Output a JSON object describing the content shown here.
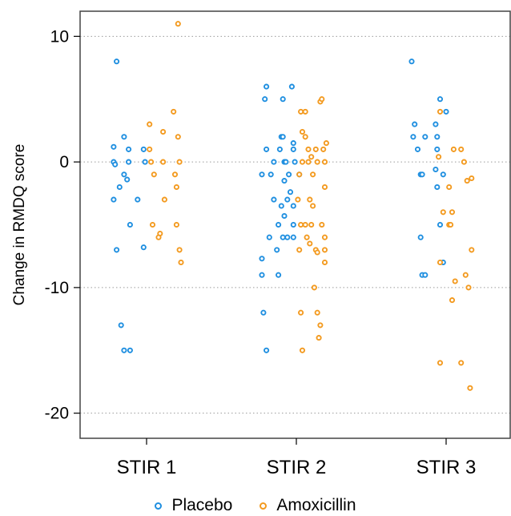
{
  "chart_data": {
    "type": "scatter",
    "title": "",
    "ylabel": "Change in RMDQ score",
    "xlabel": "",
    "categories": [
      "STIR 1",
      "STIR 2",
      "STIR 3"
    ],
    "ylim": [
      -22,
      12
    ],
    "yticks": [
      10,
      0,
      -10,
      -20
    ],
    "grid": "horizontal dotted",
    "legend_position": "bottom",
    "series": [
      {
        "name": "Placebo",
        "color": "#1f8fe0",
        "points": [
          {
            "category": "STIR 1",
            "jitter": -0.2,
            "y": 8
          },
          {
            "category": "STIR 1",
            "jitter": -0.15,
            "y": 2
          },
          {
            "category": "STIR 1",
            "jitter": -0.22,
            "y": 1.2
          },
          {
            "category": "STIR 1",
            "jitter": -0.12,
            "y": 1
          },
          {
            "category": "STIR 1",
            "jitter": -0.02,
            "y": 1
          },
          {
            "category": "STIR 1",
            "jitter": -0.22,
            "y": 0
          },
          {
            "category": "STIR 1",
            "jitter": -0.21,
            "y": -0.2
          },
          {
            "category": "STIR 1",
            "jitter": -0.12,
            "y": 0
          },
          {
            "category": "STIR 1",
            "jitter": -0.01,
            "y": 0
          },
          {
            "category": "STIR 1",
            "jitter": -0.15,
            "y": -1
          },
          {
            "category": "STIR 1",
            "jitter": -0.13,
            "y": -1.4
          },
          {
            "category": "STIR 1",
            "jitter": -0.18,
            "y": -2
          },
          {
            "category": "STIR 1",
            "jitter": -0.22,
            "y": -3
          },
          {
            "category": "STIR 1",
            "jitter": -0.06,
            "y": -3
          },
          {
            "category": "STIR 1",
            "jitter": -0.11,
            "y": -5
          },
          {
            "category": "STIR 1",
            "jitter": -0.2,
            "y": -7
          },
          {
            "category": "STIR 1",
            "jitter": -0.02,
            "y": -6.8
          },
          {
            "category": "STIR 1",
            "jitter": -0.17,
            "y": -13
          },
          {
            "category": "STIR 1",
            "jitter": -0.15,
            "y": -15
          },
          {
            "category": "STIR 1",
            "jitter": -0.11,
            "y": -15
          },
          {
            "category": "STIR 2",
            "jitter": -0.2,
            "y": 6
          },
          {
            "category": "STIR 2",
            "jitter": -0.03,
            "y": 6
          },
          {
            "category": "STIR 2",
            "jitter": -0.21,
            "y": 5
          },
          {
            "category": "STIR 2",
            "jitter": -0.09,
            "y": 5
          },
          {
            "category": "STIR 2",
            "jitter": -0.1,
            "y": 2
          },
          {
            "category": "STIR 2",
            "jitter": -0.09,
            "y": 2
          },
          {
            "category": "STIR 2",
            "jitter": -0.02,
            "y": 1.5
          },
          {
            "category": "STIR 2",
            "jitter": -0.2,
            "y": 1
          },
          {
            "category": "STIR 2",
            "jitter": -0.11,
            "y": 1
          },
          {
            "category": "STIR 2",
            "jitter": -0.02,
            "y": 1
          },
          {
            "category": "STIR 2",
            "jitter": -0.15,
            "y": 0
          },
          {
            "category": "STIR 2",
            "jitter": -0.08,
            "y": 0
          },
          {
            "category": "STIR 2",
            "jitter": -0.07,
            "y": 0
          },
          {
            "category": "STIR 2",
            "jitter": -0.01,
            "y": 0
          },
          {
            "category": "STIR 2",
            "jitter": -0.23,
            "y": -1
          },
          {
            "category": "STIR 2",
            "jitter": -0.17,
            "y": -1
          },
          {
            "category": "STIR 2",
            "jitter": -0.05,
            "y": -1
          },
          {
            "category": "STIR 2",
            "jitter": 0.02,
            "y": -1
          },
          {
            "category": "STIR 2",
            "jitter": -0.08,
            "y": -1.5
          },
          {
            "category": "STIR 2",
            "jitter": -0.04,
            "y": -2.4
          },
          {
            "category": "STIR 2",
            "jitter": -0.15,
            "y": -3
          },
          {
            "category": "STIR 2",
            "jitter": -0.06,
            "y": -3
          },
          {
            "category": "STIR 2",
            "jitter": -0.1,
            "y": -3.5
          },
          {
            "category": "STIR 2",
            "jitter": -0.02,
            "y": -3.5
          },
          {
            "category": "STIR 2",
            "jitter": -0.08,
            "y": -4.3
          },
          {
            "category": "STIR 2",
            "jitter": -0.12,
            "y": -5
          },
          {
            "category": "STIR 2",
            "jitter": -0.02,
            "y": -5
          },
          {
            "category": "STIR 2",
            "jitter": -0.18,
            "y": -6
          },
          {
            "category": "STIR 2",
            "jitter": -0.09,
            "y": -6
          },
          {
            "category": "STIR 2",
            "jitter": -0.06,
            "y": -6
          },
          {
            "category": "STIR 2",
            "jitter": -0.02,
            "y": -6
          },
          {
            "category": "STIR 2",
            "jitter": -0.13,
            "y": -7
          },
          {
            "category": "STIR 2",
            "jitter": -0.23,
            "y": -7.7
          },
          {
            "category": "STIR 2",
            "jitter": -0.23,
            "y": -9
          },
          {
            "category": "STIR 2",
            "jitter": -0.12,
            "y": -9
          },
          {
            "category": "STIR 2",
            "jitter": -0.22,
            "y": -12
          },
          {
            "category": "STIR 2",
            "jitter": -0.2,
            "y": -15
          },
          {
            "category": "STIR 3",
            "jitter": -0.23,
            "y": 8
          },
          {
            "category": "STIR 3",
            "jitter": -0.04,
            "y": 5
          },
          {
            "category": "STIR 3",
            "jitter": 0.0,
            "y": 4
          },
          {
            "category": "STIR 3",
            "jitter": -0.21,
            "y": 3
          },
          {
            "category": "STIR 3",
            "jitter": -0.07,
            "y": 3
          },
          {
            "category": "STIR 3",
            "jitter": -0.22,
            "y": 2
          },
          {
            "category": "STIR 3",
            "jitter": -0.14,
            "y": 2
          },
          {
            "category": "STIR 3",
            "jitter": -0.06,
            "y": 2
          },
          {
            "category": "STIR 3",
            "jitter": -0.19,
            "y": 1
          },
          {
            "category": "STIR 3",
            "jitter": -0.06,
            "y": 1
          },
          {
            "category": "STIR 3",
            "jitter": -0.07,
            "y": -0.6
          },
          {
            "category": "STIR 3",
            "jitter": -0.17,
            "y": -1
          },
          {
            "category": "STIR 3",
            "jitter": -0.16,
            "y": -1
          },
          {
            "category": "STIR 3",
            "jitter": -0.02,
            "y": -1
          },
          {
            "category": "STIR 3",
            "jitter": -0.06,
            "y": -2
          },
          {
            "category": "STIR 3",
            "jitter": -0.04,
            "y": -5
          },
          {
            "category": "STIR 3",
            "jitter": -0.17,
            "y": -6
          },
          {
            "category": "STIR 3",
            "jitter": -0.02,
            "y": -8
          },
          {
            "category": "STIR 3",
            "jitter": -0.16,
            "y": -9
          },
          {
            "category": "STIR 3",
            "jitter": -0.14,
            "y": -9
          }
        ]
      },
      {
        "name": "Amoxicillin",
        "color": "#f39a1f",
        "points": [
          {
            "category": "STIR 1",
            "jitter": 0.21,
            "y": 11
          },
          {
            "category": "STIR 1",
            "jitter": 0.18,
            "y": 4
          },
          {
            "category": "STIR 1",
            "jitter": 0.02,
            "y": 3
          },
          {
            "category": "STIR 1",
            "jitter": 0.11,
            "y": 2.4
          },
          {
            "category": "STIR 1",
            "jitter": 0.21,
            "y": 2
          },
          {
            "category": "STIR 1",
            "jitter": 0.02,
            "y": 1
          },
          {
            "category": "STIR 1",
            "jitter": 0.03,
            "y": 0
          },
          {
            "category": "STIR 1",
            "jitter": 0.11,
            "y": 0
          },
          {
            "category": "STIR 1",
            "jitter": 0.22,
            "y": 0
          },
          {
            "category": "STIR 1",
            "jitter": 0.05,
            "y": -1
          },
          {
            "category": "STIR 1",
            "jitter": 0.19,
            "y": -1
          },
          {
            "category": "STIR 1",
            "jitter": 0.2,
            "y": -2
          },
          {
            "category": "STIR 1",
            "jitter": 0.12,
            "y": -3
          },
          {
            "category": "STIR 1",
            "jitter": 0.04,
            "y": -5
          },
          {
            "category": "STIR 1",
            "jitter": 0.2,
            "y": -5
          },
          {
            "category": "STIR 1",
            "jitter": 0.09,
            "y": -5.7
          },
          {
            "category": "STIR 1",
            "jitter": 0.08,
            "y": -6
          },
          {
            "category": "STIR 1",
            "jitter": 0.22,
            "y": -7
          },
          {
            "category": "STIR 1",
            "jitter": 0.23,
            "y": -8
          },
          {
            "category": "STIR 2",
            "jitter": 0.03,
            "y": 4
          },
          {
            "category": "STIR 2",
            "jitter": 0.06,
            "y": 4
          },
          {
            "category": "STIR 2",
            "jitter": 0.16,
            "y": 4.8
          },
          {
            "category": "STIR 2",
            "jitter": 0.17,
            "y": 5
          },
          {
            "category": "STIR 2",
            "jitter": 0.04,
            "y": 2.4
          },
          {
            "category": "STIR 2",
            "jitter": 0.06,
            "y": 2
          },
          {
            "category": "STIR 2",
            "jitter": 0.2,
            "y": 1.5
          },
          {
            "category": "STIR 2",
            "jitter": 0.08,
            "y": 1
          },
          {
            "category": "STIR 2",
            "jitter": 0.13,
            "y": 1
          },
          {
            "category": "STIR 2",
            "jitter": 0.18,
            "y": 1
          },
          {
            "category": "STIR 2",
            "jitter": 0.1,
            "y": 0.4
          },
          {
            "category": "STIR 2",
            "jitter": 0.04,
            "y": 0
          },
          {
            "category": "STIR 2",
            "jitter": 0.08,
            "y": 0
          },
          {
            "category": "STIR 2",
            "jitter": 0.14,
            "y": 0
          },
          {
            "category": "STIR 2",
            "jitter": 0.19,
            "y": 0
          },
          {
            "category": "STIR 2",
            "jitter": 0.02,
            "y": -1
          },
          {
            "category": "STIR 2",
            "jitter": 0.11,
            "y": -1
          },
          {
            "category": "STIR 2",
            "jitter": 0.19,
            "y": -2
          },
          {
            "category": "STIR 2",
            "jitter": 0.01,
            "y": -3
          },
          {
            "category": "STIR 2",
            "jitter": 0.09,
            "y": -3
          },
          {
            "category": "STIR 2",
            "jitter": 0.11,
            "y": -3.5
          },
          {
            "category": "STIR 2",
            "jitter": 0.03,
            "y": -5
          },
          {
            "category": "STIR 2",
            "jitter": 0.06,
            "y": -5
          },
          {
            "category": "STIR 2",
            "jitter": 0.1,
            "y": -5
          },
          {
            "category": "STIR 2",
            "jitter": 0.17,
            "y": -5
          },
          {
            "category": "STIR 2",
            "jitter": 0.19,
            "y": -6
          },
          {
            "category": "STIR 2",
            "jitter": 0.07,
            "y": -6
          },
          {
            "category": "STIR 2",
            "jitter": 0.02,
            "y": -7
          },
          {
            "category": "STIR 2",
            "jitter": 0.09,
            "y": -6.5
          },
          {
            "category": "STIR 2",
            "jitter": 0.13,
            "y": -7
          },
          {
            "category": "STIR 2",
            "jitter": 0.19,
            "y": -7
          },
          {
            "category": "STIR 2",
            "jitter": 0.14,
            "y": -7.2
          },
          {
            "category": "STIR 2",
            "jitter": 0.19,
            "y": -8
          },
          {
            "category": "STIR 2",
            "jitter": 0.12,
            "y": -10
          },
          {
            "category": "STIR 2",
            "jitter": 0.03,
            "y": -12
          },
          {
            "category": "STIR 2",
            "jitter": 0.14,
            "y": -12
          },
          {
            "category": "STIR 2",
            "jitter": 0.16,
            "y": -13
          },
          {
            "category": "STIR 2",
            "jitter": 0.15,
            "y": -14
          },
          {
            "category": "STIR 2",
            "jitter": 0.04,
            "y": -15
          },
          {
            "category": "STIR 3",
            "jitter": -0.04,
            "y": 4
          },
          {
            "category": "STIR 3",
            "jitter": 0.05,
            "y": 1
          },
          {
            "category": "STIR 3",
            "jitter": 0.1,
            "y": 1
          },
          {
            "category": "STIR 3",
            "jitter": -0.05,
            "y": 0.4
          },
          {
            "category": "STIR 3",
            "jitter": 0.12,
            "y": 0
          },
          {
            "category": "STIR 3",
            "jitter": 0.17,
            "y": -1.3
          },
          {
            "category": "STIR 3",
            "jitter": 0.14,
            "y": -1.5
          },
          {
            "category": "STIR 3",
            "jitter": 0.02,
            "y": -2
          },
          {
            "category": "STIR 3",
            "jitter": -0.02,
            "y": -4
          },
          {
            "category": "STIR 3",
            "jitter": 0.04,
            "y": -4
          },
          {
            "category": "STIR 3",
            "jitter": 0.02,
            "y": -5
          },
          {
            "category": "STIR 3",
            "jitter": 0.03,
            "y": -5
          },
          {
            "category": "STIR 3",
            "jitter": 0.17,
            "y": -7
          },
          {
            "category": "STIR 3",
            "jitter": -0.04,
            "y": -8
          },
          {
            "category": "STIR 3",
            "jitter": 0.13,
            "y": -9
          },
          {
            "category": "STIR 3",
            "jitter": 0.06,
            "y": -9.5
          },
          {
            "category": "STIR 3",
            "jitter": 0.15,
            "y": -10
          },
          {
            "category": "STIR 3",
            "jitter": 0.04,
            "y": -11
          },
          {
            "category": "STIR 3",
            "jitter": -0.04,
            "y": -16
          },
          {
            "category": "STIR 3",
            "jitter": 0.1,
            "y": -16
          },
          {
            "category": "STIR 3",
            "jitter": 0.16,
            "y": -18
          }
        ]
      }
    ]
  }
}
